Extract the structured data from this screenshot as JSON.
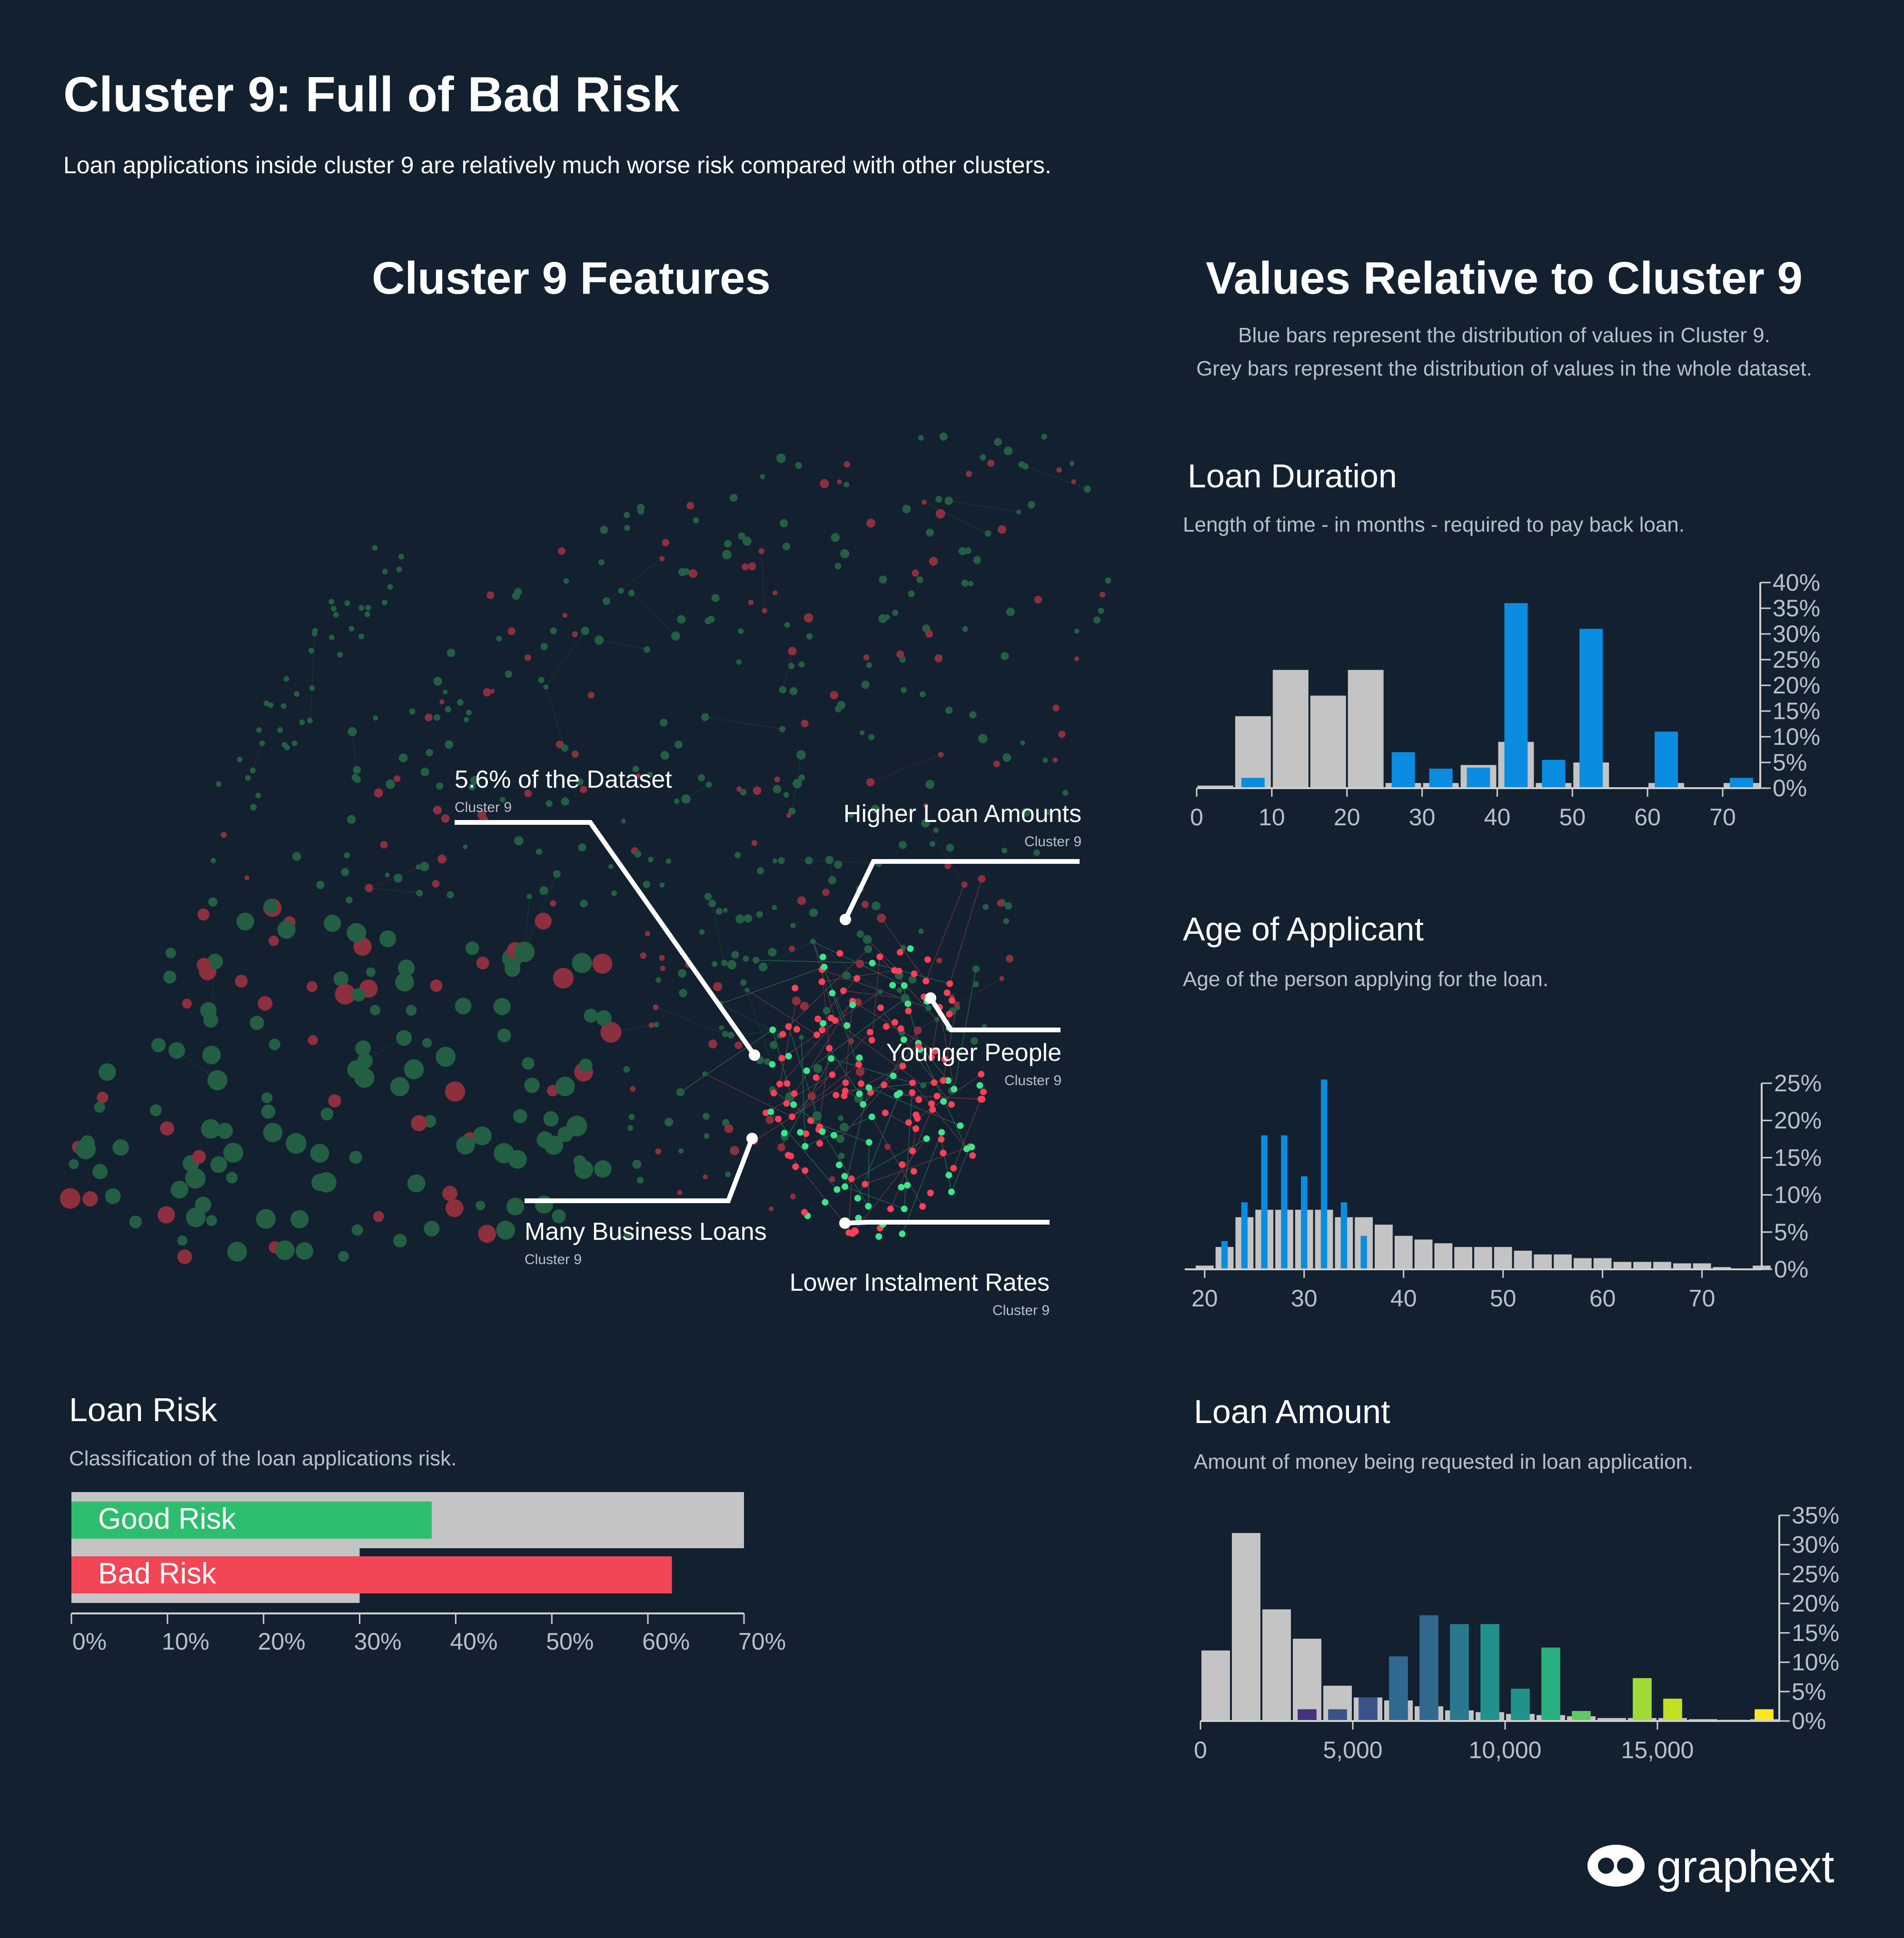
{
  "header": {
    "title": "Cluster 9: Full of Bad Risk",
    "subtitle": "Loan applications inside cluster 9 are relatively much worse risk compared with other clusters."
  },
  "left": {
    "title": "Cluster 9 Features",
    "annotations": [
      {
        "label": "5.6% of the Dataset",
        "sub": "Cluster 9"
      },
      {
        "label": "Higher Loan Amounts",
        "sub": "Cluster 9"
      },
      {
        "label": "Younger People",
        "sub": "Cluster 9"
      },
      {
        "label": "Many Business Loans",
        "sub": "Cluster 9"
      },
      {
        "label": "Lower Instalment Rates",
        "sub": "Cluster 9"
      }
    ]
  },
  "right": {
    "title": "Values Relative to Cluster 9",
    "desc1": "Blue bars represent the distribution of values in Cluster 9.",
    "desc2": "Grey bars represent the distribution of values in the whole dataset."
  },
  "colors": {
    "background": "#13202f",
    "cluster_bar": "#0a8de0",
    "dataset_bar": "#c4c4c4",
    "good_risk": "#2ebd6f",
    "bad_risk": "#f24656",
    "node_green": "#2a7a50",
    "node_red": "#c0394b"
  },
  "logo": {
    "text": "graphext",
    "icon": "graphext-logo-icon"
  },
  "chart_data": [
    {
      "id": "loan_risk",
      "type": "bar",
      "orientation": "horizontal",
      "title": "Loan Risk",
      "description": "Classification of the loan applications risk.",
      "categories": [
        "Good Risk",
        "Bad Risk"
      ],
      "series": [
        {
          "name": "Cluster 9",
          "values": [
            37.5,
            62.5
          ],
          "colors": [
            "#2ebd6f",
            "#f24656"
          ]
        },
        {
          "name": "Dataset",
          "values": [
            70,
            30
          ],
          "color": "#c4c4c4"
        }
      ],
      "xlim": [
        0,
        70
      ],
      "xticks": [
        0,
        10,
        20,
        30,
        40,
        50,
        60,
        70
      ],
      "xtick_labels": [
        "0%",
        "10%",
        "20%",
        "30%",
        "40%",
        "50%",
        "60%",
        "70%"
      ]
    },
    {
      "id": "loan_duration",
      "type": "bar",
      "title": "Loan Duration",
      "description": "Length of time - in months - required to pay back loan.",
      "bin_width": 5,
      "x": [
        0,
        5,
        10,
        15,
        20,
        25,
        30,
        35,
        40,
        45,
        50,
        55,
        60,
        65,
        70
      ],
      "series": [
        {
          "name": "Dataset",
          "values": [
            0.5,
            14,
            23,
            18,
            23,
            1,
            1,
            4.5,
            9,
            1,
            5,
            0,
            1,
            0,
            1
          ],
          "color": "#c4c4c4"
        },
        {
          "name": "Cluster 9",
          "values": [
            0,
            2,
            0,
            0,
            0,
            7,
            3.8,
            4,
            36,
            5.5,
            31,
            0,
            11,
            0,
            2
          ],
          "color": "#0a8de0"
        }
      ],
      "xlim": [
        0,
        75
      ],
      "ylim": [
        0,
        40
      ],
      "xticks": [
        0,
        10,
        20,
        30,
        40,
        50,
        60,
        70
      ],
      "xtick_labels": [
        "0",
        "10",
        "20",
        "30",
        "40",
        "50",
        "60",
        "70"
      ],
      "yticks": [
        0,
        5,
        10,
        15,
        20,
        25,
        30,
        35,
        40
      ],
      "ytick_labels": [
        "0%",
        "5%",
        "10%",
        "15%",
        "20%",
        "25%",
        "30%",
        "35%",
        "40%"
      ]
    },
    {
      "id": "age_of_applicant",
      "type": "bar",
      "title": "Age of Applicant",
      "description": "Age of the person applying for the loan.",
      "bin_width": 2,
      "x": [
        19,
        21,
        23,
        25,
        27,
        29,
        31,
        33,
        35,
        37,
        39,
        41,
        43,
        45,
        47,
        49,
        51,
        53,
        55,
        57,
        59,
        61,
        63,
        65,
        67,
        69,
        71,
        73,
        75
      ],
      "series": [
        {
          "name": "Dataset",
          "values": [
            0.5,
            3,
            7,
            8,
            8,
            8,
            8,
            7,
            7,
            6,
            4.5,
            4,
            3.5,
            3,
            3,
            3,
            2.5,
            2,
            2,
            1.5,
            1.5,
            1,
            1,
            1,
            0.8,
            0.8,
            0.3,
            0,
            0.5
          ],
          "color": "#c4c4c4"
        },
        {
          "name": "Cluster 9",
          "values": [
            0,
            3.8,
            9,
            18,
            18,
            12.5,
            25.5,
            9,
            4.5,
            0,
            0,
            0,
            0,
            0,
            0,
            0,
            0,
            0,
            0,
            0,
            0,
            0,
            0,
            0,
            0,
            0,
            0,
            0,
            0
          ],
          "color": "#0a8de0"
        }
      ],
      "xlim": [
        18,
        76
      ],
      "ylim": [
        0,
        25
      ],
      "xticks": [
        20,
        30,
        40,
        50,
        60,
        70
      ],
      "xtick_labels": [
        "20",
        "30",
        "40",
        "50",
        "60",
        "70"
      ],
      "yticks": [
        0,
        5,
        10,
        15,
        20,
        25
      ],
      "ytick_labels": [
        "0%",
        "5%",
        "10%",
        "15%",
        "20%",
        "25%"
      ]
    },
    {
      "id": "loan_amount",
      "type": "bar",
      "title": "Loan Amount",
      "description": "Amount of money being requested in loan application.",
      "bin_width": 1000,
      "x": [
        0,
        1000,
        2000,
        3000,
        4000,
        5000,
        6000,
        7000,
        8000,
        9000,
        10000,
        11000,
        12000,
        13000,
        14000,
        15000,
        16000,
        17000,
        18000
      ],
      "series": [
        {
          "name": "Dataset",
          "values": [
            12,
            32,
            19,
            14,
            6,
            4,
            3.5,
            2.5,
            1.8,
            1.5,
            1.2,
            1,
            0.8,
            0.5,
            0.5,
            0.5,
            0.3,
            0.2,
            0.3
          ],
          "color": "#c4c4c4"
        },
        {
          "name": "Cluster 9",
          "values": [
            0,
            0,
            0,
            2,
            2,
            4,
            11,
            18,
            16.5,
            16.5,
            5.5,
            12.5,
            1.7,
            0,
            7.3,
            3.8,
            0,
            0,
            2
          ],
          "colors": [
            "#46327e",
            "#46327e",
            "#46327e",
            "#46327e",
            "#3b528b",
            "#3b528b",
            "#31688e",
            "#31688e",
            "#2a788e",
            "#21918c",
            "#21918c",
            "#2ab07f",
            "#5ec962",
            "#5ec962",
            "#a0da39",
            "#c2df23",
            "#c2df23",
            "#fde725",
            "#fde725"
          ]
        }
      ],
      "xlim": [
        0,
        19000
      ],
      "ylim": [
        0,
        35
      ],
      "xticks": [
        0,
        5000,
        10000,
        15000
      ],
      "xtick_labels": [
        "0",
        "5,000",
        "10,000",
        "15,000"
      ],
      "yticks": [
        0,
        5,
        10,
        15,
        20,
        25,
        30,
        35
      ],
      "ytick_labels": [
        "0%",
        "5%",
        "10%",
        "15%",
        "20%",
        "25%",
        "30%",
        "35%"
      ]
    }
  ]
}
